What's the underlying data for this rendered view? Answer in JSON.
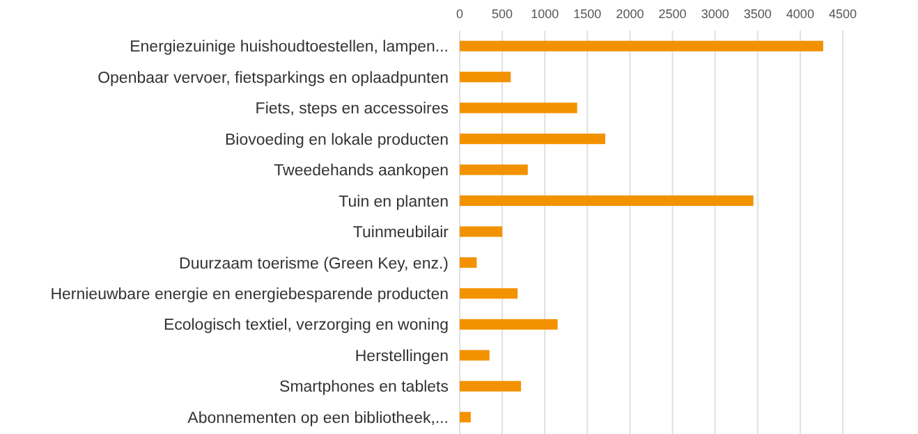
{
  "chart_data": {
    "type": "bar",
    "orientation": "horizontal",
    "categories": [
      "Energiezuinige huishoudtoestellen, lampen...",
      "Openbaar vervoer, fietsparkings en oplaadpunten",
      "Fiets, steps en accessoires",
      "Biovoeding en lokale producten",
      "Tweedehands aankopen",
      "Tuin en planten",
      "Tuinmeubilair",
      "Duurzaam toerisme (Green Key, enz.)",
      "Hernieuwbare energie en energiebesparende producten",
      "Ecologisch textiel, verzorging en woning",
      "Herstellingen",
      "Smartphones en tablets",
      "Abonnementen op een bibliotheek,..."
    ],
    "values": [
      4270,
      600,
      1380,
      1710,
      800,
      3450,
      500,
      200,
      680,
      1150,
      350,
      720,
      130
    ],
    "color": "#f39200",
    "xlim": [
      0,
      4500
    ],
    "xticks": [
      0,
      500,
      1000,
      1500,
      2000,
      2500,
      3000,
      3500,
      4000,
      4500
    ],
    "grid": "x"
  }
}
